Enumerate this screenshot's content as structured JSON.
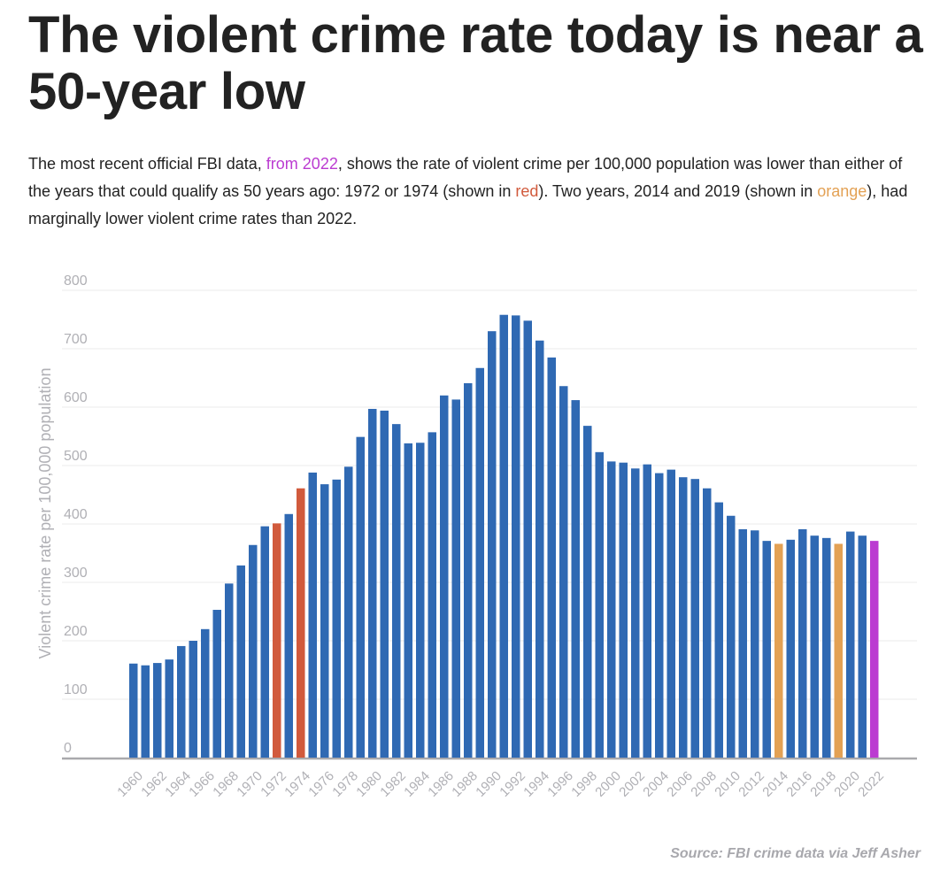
{
  "title": "The violent crime rate today is near a 50-year low",
  "description": {
    "part1": "The most recent official FBI data, ",
    "link": "from 2022",
    "part2": ", shows the rate of violent crime per 100,000 population was lower than either of the years that could qualify as 50 years ago: 1972 or 1974 (shown in ",
    "red_word": "red",
    "part3": "). Two years, 2014 and 2019 (shown in ",
    "orange_word": "orange",
    "part4": "), had marginally lower violent crime rates than 2022."
  },
  "source": "Source: FBI crime data via Jeff Asher",
  "colors": {
    "default": "#2f69b3",
    "fifty_years_ago": "#d15a3c",
    "lower_than_2022": "#e3a154",
    "latest": "#bb3bd1"
  },
  "chart_data": {
    "type": "bar",
    "title": "The violent crime rate today is near a 50-year low",
    "xlabel": "",
    "ylabel": "Violent crime rate per 100,000 population",
    "ylim": [
      0,
      800
    ],
    "yticks": [
      0,
      100,
      200,
      300,
      400,
      500,
      600,
      700,
      800
    ],
    "grid": true,
    "x": [
      1960,
      1961,
      1962,
      1963,
      1964,
      1965,
      1966,
      1967,
      1968,
      1969,
      1970,
      1971,
      1972,
      1973,
      1974,
      1975,
      1976,
      1977,
      1978,
      1979,
      1980,
      1981,
      1982,
      1983,
      1984,
      1985,
      1986,
      1987,
      1988,
      1989,
      1990,
      1991,
      1992,
      1993,
      1994,
      1995,
      1996,
      1997,
      1998,
      1999,
      2000,
      2001,
      2002,
      2003,
      2004,
      2005,
      2006,
      2007,
      2008,
      2009,
      2010,
      2011,
      2012,
      2013,
      2014,
      2015,
      2016,
      2017,
      2018,
      2019,
      2020,
      2021,
      2022
    ],
    "values": [
      161,
      158,
      162,
      168,
      191,
      200,
      220,
      253,
      298,
      329,
      364,
      396,
      401,
      417,
      461,
      488,
      468,
      476,
      498,
      549,
      597,
      594,
      571,
      538,
      539,
      557,
      620,
      613,
      641,
      667,
      730,
      758,
      757,
      748,
      714,
      685,
      636,
      612,
      568,
      523,
      507,
      505,
      495,
      502,
      487,
      493,
      480,
      477,
      461,
      437,
      414,
      391,
      389,
      371,
      366,
      373,
      391,
      380,
      376,
      366,
      387,
      380,
      371
    ],
    "highlight": {
      "1972": "fifty_years_ago",
      "1974": "fifty_years_ago",
      "2014": "lower_than_2022",
      "2019": "lower_than_2022",
      "2022": "latest"
    },
    "tick_labels": [
      "1960",
      "1962",
      "1964",
      "1966",
      "1968",
      "1970",
      "1972",
      "1974",
      "1976",
      "1978",
      "1980",
      "1982",
      "1984",
      "1986",
      "1988",
      "1990",
      "1992",
      "1994",
      "1996",
      "1998",
      "2000",
      "2002",
      "2004",
      "2006",
      "2008",
      "2010",
      "2012",
      "2014",
      "2016",
      "2018",
      "2020",
      "2022"
    ]
  }
}
